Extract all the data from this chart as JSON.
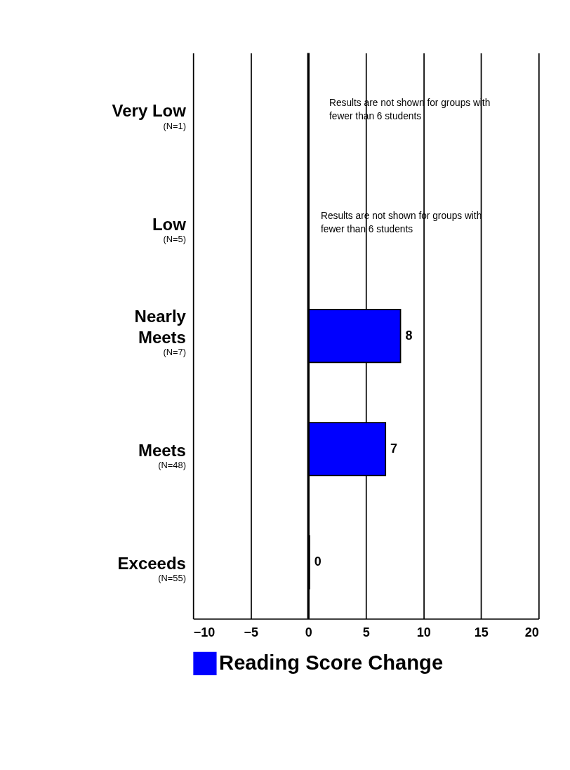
{
  "chart_data": {
    "type": "bar",
    "orientation": "horizontal",
    "categories": [
      "Very Low",
      "Low",
      "Nearly Meets",
      "Meets",
      "Exceeds"
    ],
    "series": [
      {
        "name": "Reading Score Change",
        "color": "#0000ff",
        "values": [
          null,
          null,
          8.0,
          6.7,
          0.1
        ],
        "value_labels": [
          null,
          null,
          "8",
          "7",
          "0"
        ]
      }
    ],
    "xlim": [
      -10,
      20
    ],
    "xticks": [
      -10,
      -5,
      0,
      5,
      10,
      15,
      20
    ],
    "grid": "x",
    "legend": "bottom",
    "ref_lines": [
      {
        "axis": "x",
        "value": 0
      }
    ],
    "annotations": [
      "(N=1)",
      "(N=5)",
      "(N=7)",
      "(N=48)",
      "(N=55)",
      "Results are not shown for groups with fewer than 6 students",
      "Results are not shown for groups with fewer than 6 students"
    ]
  }
}
